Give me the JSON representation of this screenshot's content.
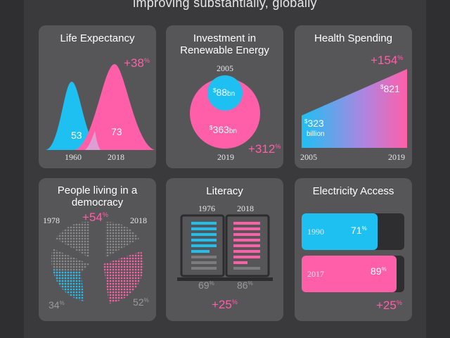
{
  "headline": "improving substantially, globally",
  "colors": {
    "cyan": "#1ec0f2",
    "pink": "#ff5fa8",
    "card": "#565658",
    "bg": "#3a3a3c"
  },
  "life_expectancy": {
    "title": "Life Expectancy",
    "change_value": "+38",
    "change_unit": "%",
    "value_1960": "53",
    "value_2018": "73",
    "year_1960": "1960",
    "year_2018": "2018"
  },
  "renewable": {
    "title": "Investment in Renewable Energy",
    "year_2005": "2005",
    "year_2019": "2019",
    "value_2005_prefix": "$",
    "value_2005": "88",
    "value_2005_unit": "bn",
    "value_2019_prefix": "$",
    "value_2019": "363",
    "value_2019_unit": "bn",
    "change_value": "+312",
    "change_unit": "%"
  },
  "health": {
    "title": "Health Spending",
    "change_value": "+154",
    "change_unit": "%",
    "value_2005_prefix": "$",
    "value_2005": "323",
    "value_2005_unit": "billion",
    "value_2019_prefix": "$",
    "value_2019": "821",
    "year_2005": "2005",
    "year_2019": "2019"
  },
  "democracy": {
    "title": "People living in a democracy",
    "year_1978": "1978",
    "year_2018": "2018",
    "change_value": "+54",
    "change_unit": "%",
    "value_1978": "34",
    "value_2018": "52",
    "value_unit": "%"
  },
  "literacy": {
    "title": "Literacy",
    "year_1976": "1976",
    "year_2018": "2018",
    "value_1976": "69",
    "value_2018": "86",
    "value_unit": "%",
    "change_value": "+25",
    "change_unit": "%"
  },
  "electricity": {
    "title": "Electricity Access",
    "rows": [
      {
        "year": "1990",
        "value": "71",
        "unit": "%",
        "fraction": 0.71
      },
      {
        "year": "2017",
        "value": "89",
        "unit": "%",
        "fraction": 0.89
      }
    ],
    "change_value": "+25",
    "change_unit": "%"
  }
}
